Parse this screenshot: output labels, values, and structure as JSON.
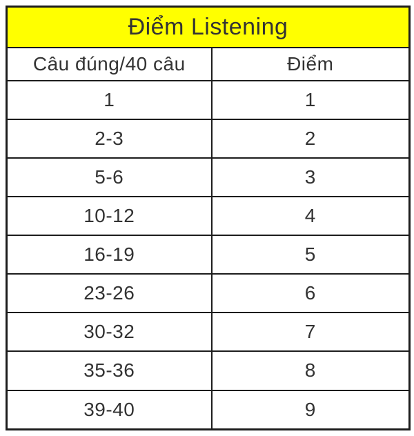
{
  "title": "Điểm Listening",
  "table": {
    "columns": [
      {
        "key": "correct",
        "label": "Câu đúng/40 câu"
      },
      {
        "key": "score",
        "label": "Điểm"
      }
    ],
    "rows": [
      {
        "correct": "1",
        "score": "1"
      },
      {
        "correct": "2-3",
        "score": "2"
      },
      {
        "correct": "5-6",
        "score": "3"
      },
      {
        "correct": "10-12",
        "score": "4"
      },
      {
        "correct": "16-19",
        "score": "5"
      },
      {
        "correct": "23-26",
        "score": "6"
      },
      {
        "correct": "30-32",
        "score": "7"
      },
      {
        "correct": "35-36",
        "score": "8"
      },
      {
        "correct": "39-40",
        "score": "9"
      }
    ]
  },
  "colors": {
    "title_background": "#FFFF00",
    "border": "#1C1C1C",
    "text": "#333333",
    "page_background": "#FFFFFF"
  },
  "chart_data": {
    "type": "table",
    "title": "Điểm Listening",
    "columns": [
      "Câu đúng/40 câu",
      "Điểm"
    ],
    "rows": [
      [
        "1",
        "1"
      ],
      [
        "2-3",
        "2"
      ],
      [
        "5-6",
        "3"
      ],
      [
        "10-12",
        "4"
      ],
      [
        "16-19",
        "5"
      ],
      [
        "23-26",
        "6"
      ],
      [
        "30-32",
        "7"
      ],
      [
        "35-36",
        "8"
      ],
      [
        "39-40",
        "9"
      ]
    ]
  }
}
